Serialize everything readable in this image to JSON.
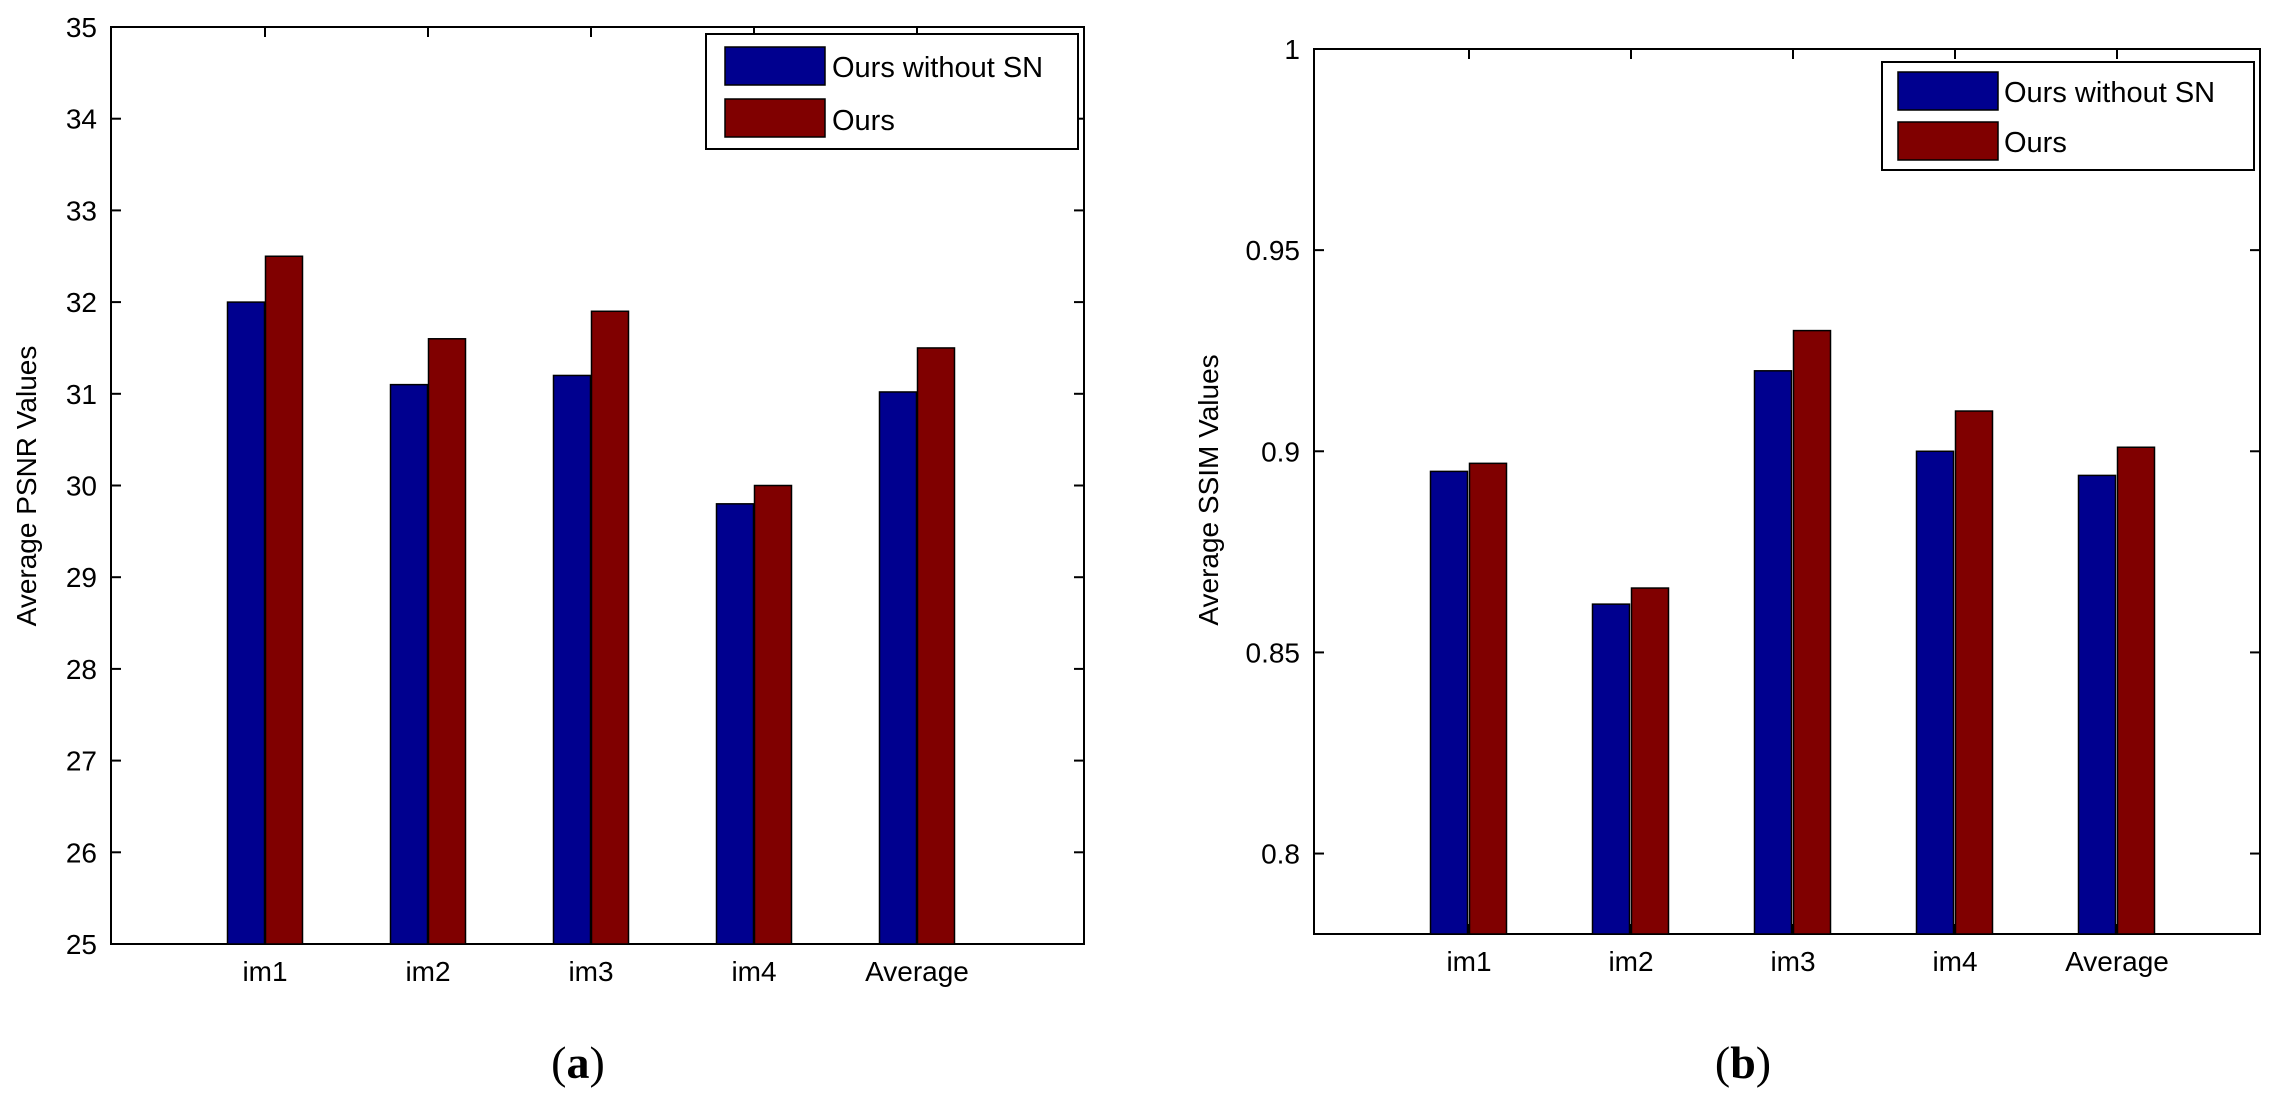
{
  "chart_data": [
    {
      "type": "bar",
      "panel_label": "(a)",
      "panel_letter": "a",
      "title": "",
      "xlabel": "",
      "ylabel": "Average PSNR Values",
      "categories": [
        "im1",
        "im2",
        "im3",
        "im4",
        "Average"
      ],
      "series": [
        {
          "name": "Ours without SN",
          "color": "#00008f",
          "values": [
            32.0,
            31.1,
            31.2,
            29.8,
            31.02
          ]
        },
        {
          "name": "Ours",
          "color": "#800000",
          "values": [
            32.5,
            31.6,
            31.9,
            30.0,
            31.5
          ]
        }
      ],
      "ylim": [
        25,
        35
      ],
      "yticks": [
        25,
        26,
        27,
        28,
        29,
        30,
        31,
        32,
        33,
        34,
        35
      ],
      "ytick_labels": [
        "25",
        "26",
        "27",
        "28",
        "29",
        "30",
        "31",
        "32",
        "33",
        "34",
        "35"
      ],
      "grid": false,
      "legend_position": "top-right"
    },
    {
      "type": "bar",
      "panel_label": "(b)",
      "panel_letter": "b",
      "title": "",
      "xlabel": "",
      "ylabel": "Average SSIM Values",
      "categories": [
        "im1",
        "im2",
        "im3",
        "im4",
        "Average"
      ],
      "series": [
        {
          "name": "Ours without SN",
          "color": "#00008f",
          "values": [
            0.895,
            0.862,
            0.92,
            0.9,
            0.894
          ]
        },
        {
          "name": "Ours",
          "color": "#800000",
          "values": [
            0.897,
            0.866,
            0.93,
            0.91,
            0.901
          ]
        }
      ],
      "ylim": [
        0.78,
        1.0
      ],
      "yticks": [
        0.8,
        0.85,
        0.9,
        0.95,
        1.0
      ],
      "ytick_labels": [
        "0.8",
        "0.85",
        "0.9",
        "0.95",
        "1"
      ],
      "grid": false,
      "legend_position": "top-right"
    }
  ]
}
